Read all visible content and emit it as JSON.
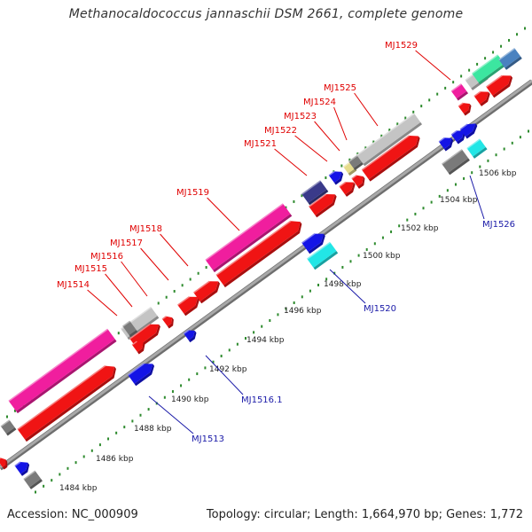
{
  "title": "Methanocaldococcus jannaschii DSM 2661, complete genome",
  "footer": {
    "accession": "Accession: NC_000909",
    "summary": "Topology: circular; Length: 1,664,970 bp; Genes: 1,772"
  },
  "colors": {
    "axis": "#8c8c8c",
    "tick": "#2e8b2e",
    "label_top": "#e00000",
    "label_bottom": "#1a1aa8"
  },
  "axis_ticks": [
    "1484 kbp",
    "1486 kbp",
    "1488 kbp",
    "1490 kbp",
    "1492 kbp",
    "1494 kbp",
    "1496 kbp",
    "1498 kbp",
    "1500 kbp",
    "1502 kbp",
    "1504 kbp",
    "1506 kbp"
  ],
  "gene_labels_top": [
    "MJ1514",
    "MJ1515",
    "MJ1516",
    "MJ1517",
    "MJ1518",
    "MJ1519",
    "MJ1521",
    "MJ1522",
    "MJ1523",
    "MJ1524",
    "MJ1525",
    "MJ1529"
  ],
  "gene_labels_bottom": [
    "MJ1513",
    "MJ1516.1",
    "MJ1520",
    "MJ1526"
  ]
}
